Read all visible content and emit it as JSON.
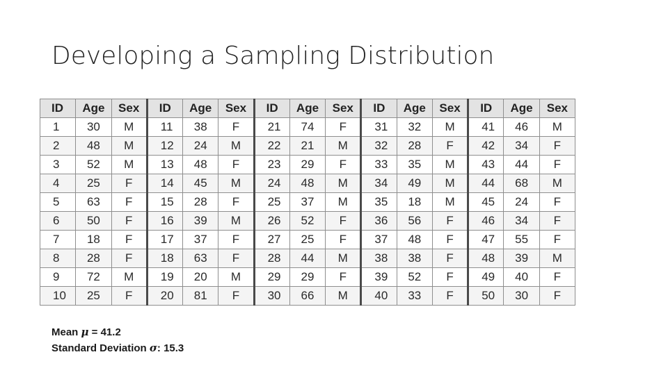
{
  "slide": {
    "title": "Developing a Sampling Distribution"
  },
  "table": {
    "headers": [
      "ID",
      "Age",
      "Sex"
    ],
    "groups": [
      {
        "rows": [
          [
            "1",
            "30",
            "M"
          ],
          [
            "2",
            "48",
            "M"
          ],
          [
            "3",
            "52",
            "M"
          ],
          [
            "4",
            "25",
            "F"
          ],
          [
            "5",
            "63",
            "F"
          ],
          [
            "6",
            "50",
            "F"
          ],
          [
            "7",
            "18",
            "F"
          ],
          [
            "8",
            "28",
            "F"
          ],
          [
            "9",
            "72",
            "M"
          ],
          [
            "10",
            "25",
            "F"
          ]
        ]
      },
      {
        "rows": [
          [
            "11",
            "38",
            "F"
          ],
          [
            "12",
            "24",
            "M"
          ],
          [
            "13",
            "48",
            "F"
          ],
          [
            "14",
            "45",
            "M"
          ],
          [
            "15",
            "28",
            "F"
          ],
          [
            "16",
            "39",
            "M"
          ],
          [
            "17",
            "37",
            "F"
          ],
          [
            "18",
            "63",
            "F"
          ],
          [
            "19",
            "20",
            "M"
          ],
          [
            "20",
            "81",
            "F"
          ]
        ]
      },
      {
        "rows": [
          [
            "21",
            "74",
            "F"
          ],
          [
            "22",
            "21",
            "M"
          ],
          [
            "23",
            "29",
            "F"
          ],
          [
            "24",
            "48",
            "M"
          ],
          [
            "25",
            "37",
            "M"
          ],
          [
            "26",
            "52",
            "F"
          ],
          [
            "27",
            "25",
            "F"
          ],
          [
            "28",
            "44",
            "M"
          ],
          [
            "29",
            "29",
            "F"
          ],
          [
            "30",
            "66",
            "M"
          ]
        ]
      },
      {
        "rows": [
          [
            "31",
            "32",
            "M"
          ],
          [
            "32",
            "28",
            "F"
          ],
          [
            "33",
            "35",
            "M"
          ],
          [
            "34",
            "49",
            "M"
          ],
          [
            "35",
            "18",
            "M"
          ],
          [
            "36",
            "56",
            "F"
          ],
          [
            "37",
            "48",
            "F"
          ],
          [
            "38",
            "38",
            "F"
          ],
          [
            "39",
            "52",
            "F"
          ],
          [
            "40",
            "33",
            "F"
          ]
        ]
      },
      {
        "rows": [
          [
            "41",
            "46",
            "M"
          ],
          [
            "42",
            "34",
            "F"
          ],
          [
            "43",
            "44",
            "F"
          ],
          [
            "44",
            "68",
            "M"
          ],
          [
            "45",
            "24",
            "F"
          ],
          [
            "46",
            "34",
            "F"
          ],
          [
            "47",
            "55",
            "F"
          ],
          [
            "48",
            "39",
            "M"
          ],
          [
            "49",
            "40",
            "F"
          ],
          [
            "50",
            "30",
            "F"
          ]
        ]
      }
    ]
  },
  "stats": {
    "mean_label": "Mean ",
    "mean_symbol": "μ",
    "mean_value": " = 41.2",
    "sd_label": "Standard Deviation ",
    "sd_symbol": "σ",
    "sd_value": ": 15.3"
  }
}
